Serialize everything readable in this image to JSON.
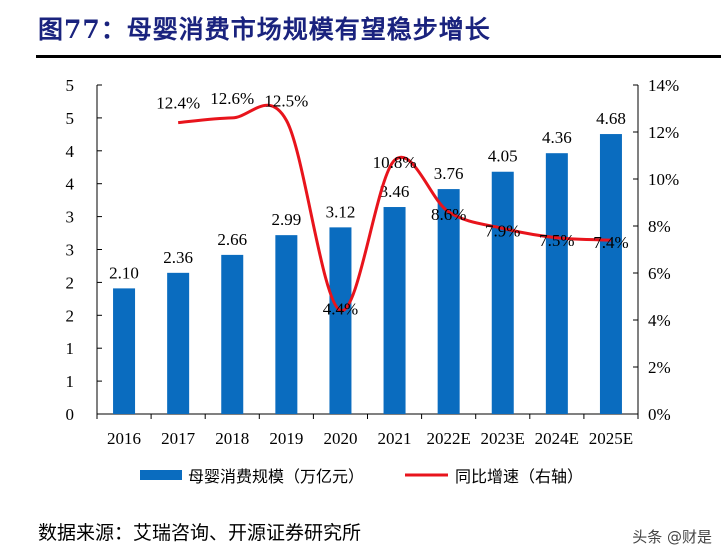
{
  "title": "图77：母婴消费市场规模有望稳步增长",
  "footer": "数据来源：艾瑞咨询、开源证券研究所",
  "watermark": "头条 @财是",
  "chart_data": {
    "type": "bar",
    "categories": [
      "2016",
      "2017",
      "2018",
      "2019",
      "2020",
      "2021",
      "2022E",
      "2023E",
      "2024E",
      "2025E"
    ],
    "series": [
      {
        "name": "母婴消费规模（万亿元）",
        "type": "bar",
        "axis": "left",
        "color": "#0a6cbf",
        "values": [
          2.1,
          2.36,
          2.66,
          2.99,
          3.12,
          3.46,
          3.76,
          4.05,
          4.36,
          4.68
        ],
        "labels": [
          "2.10",
          "2.36",
          "2.66",
          "2.99",
          "3.12",
          "3.46",
          "3.76",
          "4.05",
          "4.36",
          "4.68"
        ]
      },
      {
        "name": "同比增速（右轴）",
        "type": "line",
        "axis": "right",
        "color": "#e8141c",
        "values": [
          null,
          12.4,
          12.6,
          12.5,
          4.4,
          10.8,
          8.6,
          7.9,
          7.5,
          7.4
        ],
        "labels": [
          "",
          "12.4%",
          "12.6%",
          "12.5%",
          "4.4%",
          "10.8%",
          "8.6%",
          "7.9%",
          "7.5%",
          "7.4%"
        ]
      }
    ],
    "left_axis": {
      "ylim": [
        0,
        5.5
      ],
      "tick_labels": [
        "0",
        "1",
        "1",
        "2",
        "2",
        "3",
        "3",
        "4",
        "4",
        "5",
        "5"
      ]
    },
    "right_axis": {
      "ylim": [
        0,
        14
      ],
      "tick_labels": [
        "0%",
        "2%",
        "4%",
        "6%",
        "8%",
        "10%",
        "12%",
        "14%"
      ]
    },
    "grid": false,
    "legend": "bottom"
  }
}
